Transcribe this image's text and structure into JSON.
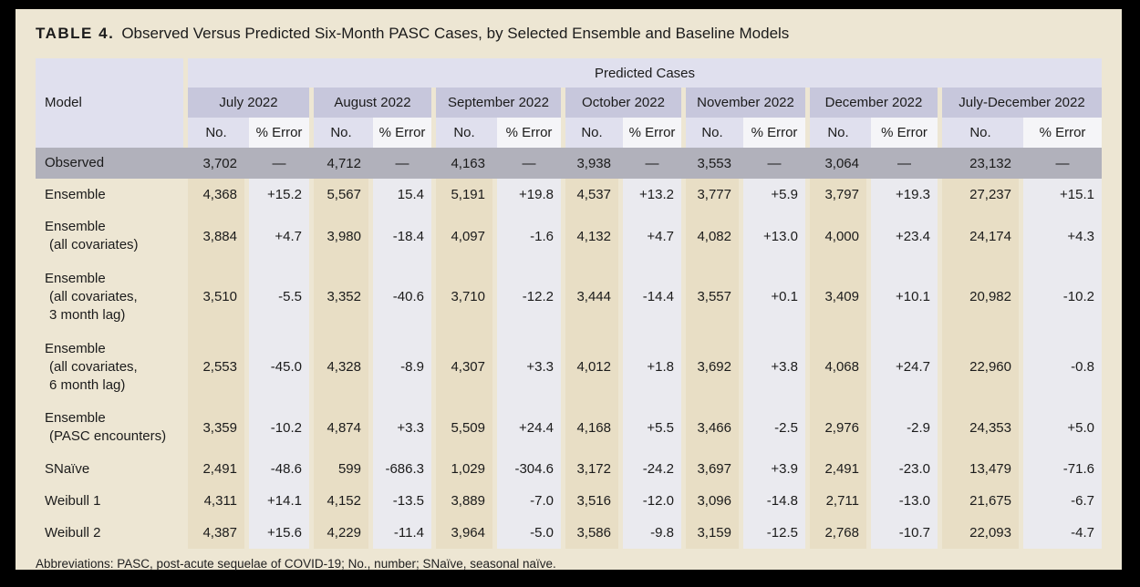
{
  "title": {
    "label": "TABLE 4.",
    "text": "Observed Versus Predicted Six-Month PASC Cases, by Selected Ensemble and Baseline Models"
  },
  "table": {
    "corner_header": "Model",
    "spanner": "Predicted Cases",
    "months": [
      "July 2022",
      "August 2022",
      "September 2022",
      "October 2022",
      "November 2022",
      "December 2022",
      "July-December 2022"
    ],
    "sub_headers": {
      "no": "No.",
      "error": "% Error"
    },
    "observed": {
      "name": "Observed",
      "values": [
        "3,702",
        "—",
        "4,712",
        "—",
        "4,163",
        "—",
        "3,938",
        "—",
        "3,553",
        "—",
        "3,064",
        "—",
        "23,132",
        "—"
      ]
    },
    "rows": [
      {
        "name_lines": [
          "Ensemble"
        ],
        "values": [
          "4,368",
          "+15.2",
          "5,567",
          "15.4",
          "5,191",
          "+19.8",
          "4,537",
          "+13.2",
          "3,777",
          "+5.9",
          "3,797",
          "+19.3",
          "27,237",
          "+15.1"
        ]
      },
      {
        "name_lines": [
          "Ensemble",
          "(all covariates)"
        ],
        "values": [
          "3,884",
          "+4.7",
          "3,980",
          "-18.4",
          "4,097",
          "-1.6",
          "4,132",
          "+4.7",
          "4,082",
          "+13.0",
          "4,000",
          "+23.4",
          "24,174",
          "+4.3"
        ]
      },
      {
        "name_lines": [
          "Ensemble",
          "(all covariates,",
          "3 month lag)"
        ],
        "values": [
          "3,510",
          "-5.5",
          "3,352",
          "-40.6",
          "3,710",
          "-12.2",
          "3,444",
          "-14.4",
          "3,557",
          "+0.1",
          "3,409",
          "+10.1",
          "20,982",
          "-10.2"
        ]
      },
      {
        "name_lines": [
          "Ensemble",
          "(all covariates,",
          "6 month lag)"
        ],
        "values": [
          "2,553",
          "-45.0",
          "4,328",
          "-8.9",
          "4,307",
          "+3.3",
          "4,012",
          "+1.8",
          "3,692",
          "+3.8",
          "4,068",
          "+24.7",
          "22,960",
          "-0.8"
        ]
      },
      {
        "name_lines": [
          "Ensemble",
          "(PASC encounters)"
        ],
        "values": [
          "3,359",
          "-10.2",
          "4,874",
          "+3.3",
          "5,509",
          "+24.4",
          "4,168",
          "+5.5",
          "3,466",
          "-2.5",
          "2,976",
          "-2.9",
          "24,353",
          "+5.0"
        ]
      },
      {
        "name_lines": [
          "SNaïve"
        ],
        "values": [
          "2,491",
          "-48.6",
          "599",
          "-686.3",
          "1,029",
          "-304.6",
          "3,172",
          "-24.2",
          "3,697",
          "+3.9",
          "2,491",
          "-23.0",
          "13,479",
          "-71.6"
        ]
      },
      {
        "name_lines": [
          "Weibull 1"
        ],
        "values": [
          "4,311",
          "+14.1",
          "4,152",
          "-13.5",
          "3,889",
          "-7.0",
          "3,516",
          "-12.0",
          "3,096",
          "-14.8",
          "2,711",
          "-13.0",
          "21,675",
          "-6.7"
        ]
      },
      {
        "name_lines": [
          "Weibull 2"
        ],
        "values": [
          "4,387",
          "+15.6",
          "4,229",
          "-11.4",
          "3,964",
          "-5.0",
          "3,586",
          "-9.8",
          "3,159",
          "-12.5",
          "2,768",
          "-10.7",
          "22,093",
          "-4.7"
        ]
      }
    ],
    "footnote": "Abbreviations: PASC, post-acute sequelae of COVID-19; No., number; SNaïve, seasonal naïve."
  },
  "colors": {
    "page_bg": "#EDE6D3",
    "frame": "#000000",
    "header_light_lavender": "#E0E0EE",
    "header_month_lavender": "#C7C7DC",
    "subheader_error_bg": "#F5F5F8",
    "observed_row_bg": "#B1B1BB",
    "no_column_bg": "#E8DEC5",
    "error_column_bg": "#EAEAEF",
    "text": "#1B1B1B"
  }
}
